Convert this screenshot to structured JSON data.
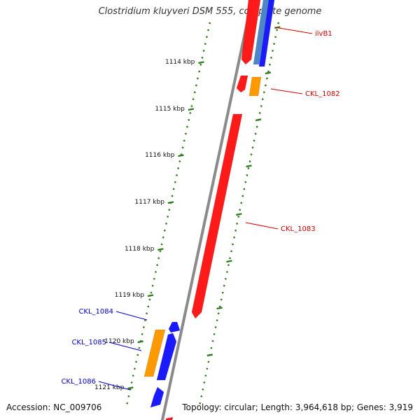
{
  "title": "Clostridium kluyveri DSM 555, complete genome",
  "footer": {
    "accession": "Accession: NC_009706",
    "summary": "Topology: circular; Length: 3,964,618 bp; Genes: 3,919"
  },
  "scale_unit": "kbp",
  "ticks": [
    1114,
    1115,
    1116,
    1117,
    1118,
    1119,
    1120,
    1121
  ],
  "colors": {
    "backbone": "#8a8a8a",
    "tick": "#2b7a1a",
    "forward_gene": "#ff1a1a",
    "reverse_gene": "#1a1aff",
    "orange_gene": "#ff9900",
    "steel_gene": "#4a86c8",
    "red_label": "#cc0000",
    "blue_label": "#0000cc"
  },
  "gene_labels": [
    {
      "id": "ilvB1",
      "text": "ilvB1",
      "color": "red",
      "side": "right"
    },
    {
      "id": "CKL_1082",
      "text": "CKL_1082",
      "color": "red",
      "side": "right"
    },
    {
      "id": "CKL_1083",
      "text": "CKL_1083",
      "color": "red",
      "side": "right"
    },
    {
      "id": "CKL_1084",
      "text": "CKL_1084",
      "color": "blue",
      "side": "left"
    },
    {
      "id": "CKL_1085",
      "text": "CKL_1085",
      "color": "blue",
      "side": "left"
    },
    {
      "id": "CKL_1086",
      "text": "CKL_1086",
      "color": "blue",
      "side": "left"
    }
  ]
}
